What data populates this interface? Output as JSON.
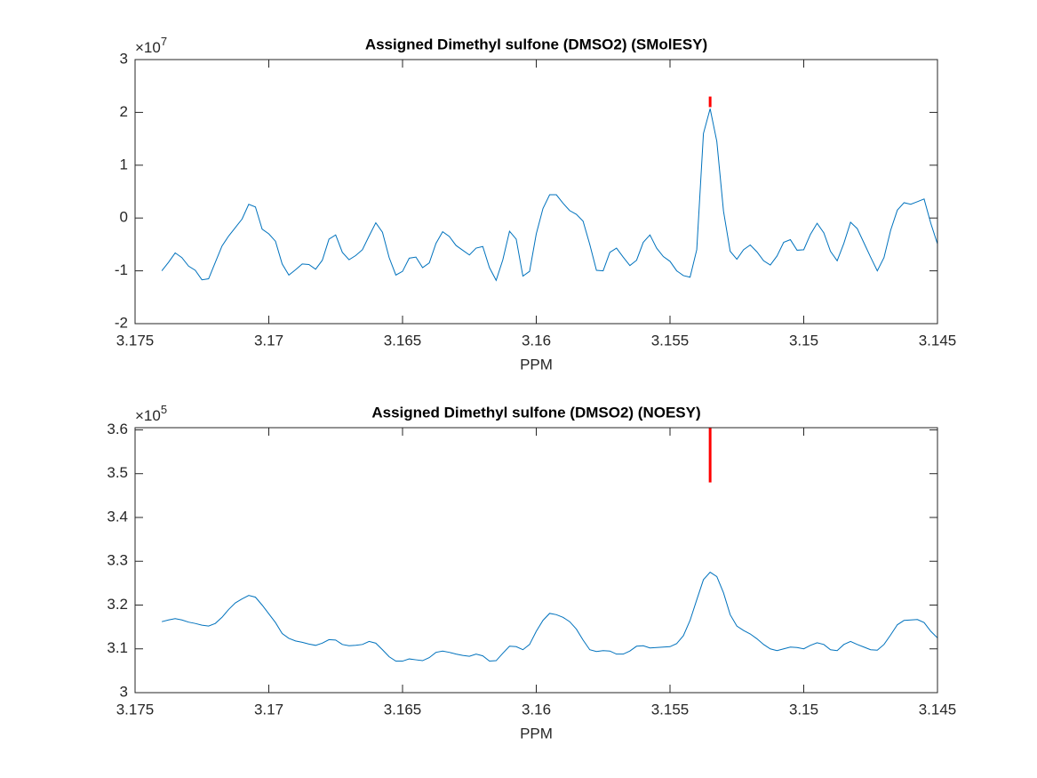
{
  "chart_data": [
    {
      "type": "line",
      "title": "Assigned Dimethyl sulfone (DMSO2) (SMolESY)",
      "xlabel": "PPM",
      "y_multiplier": {
        "base": "×10",
        "exponent": "7"
      },
      "xlim": [
        3.175,
        3.145
      ],
      "xticks": [
        3.175,
        3.17,
        3.165,
        3.16,
        3.155,
        3.15,
        3.145
      ],
      "ylim": [
        -2,
        3
      ],
      "yticks": [
        -2,
        -1,
        0,
        1,
        2,
        3
      ],
      "x": [
        3.174,
        3.17375,
        3.1735,
        3.17325,
        3.173,
        3.17275,
        3.1725,
        3.17225,
        3.172,
        3.17175,
        3.1715,
        3.17125,
        3.171,
        3.17075,
        3.1705,
        3.17025,
        3.17,
        3.16975,
        3.1695,
        3.16925,
        3.169,
        3.16875,
        3.1685,
        3.16825,
        3.168,
        3.16775,
        3.1675,
        3.16725,
        3.167,
        3.16675,
        3.1665,
        3.16625,
        3.166,
        3.16575,
        3.1655,
        3.16525,
        3.165,
        3.16475,
        3.1645,
        3.16425,
        3.164,
        3.16375,
        3.1635,
        3.16325,
        3.163,
        3.16275,
        3.1625,
        3.16225,
        3.162,
        3.16175,
        3.1615,
        3.16125,
        3.161,
        3.16075,
        3.1605,
        3.16025,
        3.16,
        3.15975,
        3.1595,
        3.15925,
        3.159,
        3.15875,
        3.1585,
        3.15825,
        3.158,
        3.15775,
        3.1575,
        3.15725,
        3.157,
        3.15675,
        3.1565,
        3.15625,
        3.156,
        3.15575,
        3.1555,
        3.15525,
        3.155,
        3.15475,
        3.1545,
        3.15425,
        3.154,
        3.15375,
        3.1535,
        3.15325,
        3.153,
        3.15275,
        3.1525,
        3.15225,
        3.152,
        3.15175,
        3.1515,
        3.15125,
        3.151,
        3.15075,
        3.1505,
        3.15025,
        3.15,
        3.14975,
        3.1495,
        3.14925,
        3.149,
        3.14875,
        3.1485,
        3.14825,
        3.148,
        3.14775,
        3.1475,
        3.14725,
        3.147,
        3.14675,
        3.1465,
        3.14625,
        3.146,
        3.14575,
        3.1455,
        3.14525,
        3.145
      ],
      "series": [
        {
          "color": "#0072bd",
          "values": [
            -1.0,
            -0.84,
            -0.66,
            -0.75,
            -0.91,
            -0.99,
            -1.17,
            -1.15,
            -0.84,
            -0.53,
            -0.34,
            -0.18,
            -0.02,
            0.26,
            0.21,
            -0.21,
            -0.3,
            -0.44,
            -0.87,
            -1.08,
            -0.98,
            -0.87,
            -0.88,
            -0.97,
            -0.8,
            -0.4,
            -0.32,
            -0.65,
            -0.79,
            -0.71,
            -0.6,
            -0.34,
            -0.09,
            -0.27,
            -0.75,
            -1.08,
            -1.01,
            -0.76,
            -0.74,
            -0.94,
            -0.85,
            -0.48,
            -0.26,
            -0.35,
            -0.52,
            -0.61,
            -0.7,
            -0.57,
            -0.54,
            -0.94,
            -1.18,
            -0.79,
            -0.25,
            -0.4,
            -1.1,
            -1.01,
            -0.3,
            0.18,
            0.44,
            0.44,
            0.28,
            0.14,
            0.07,
            -0.06,
            -0.5,
            -0.99,
            -1.0,
            -0.65,
            -0.57,
            -0.74,
            -0.9,
            -0.8,
            -0.46,
            -0.32,
            -0.57,
            -0.73,
            -0.82,
            -1.0,
            -1.09,
            -1.12,
            -0.6,
            1.6,
            2.07,
            1.45,
            0.13,
            -0.63,
            -0.78,
            -0.6,
            -0.51,
            -0.64,
            -0.81,
            -0.89,
            -0.72,
            -0.46,
            -0.41,
            -0.61,
            -0.6,
            -0.31,
            -0.1,
            -0.28,
            -0.63,
            -0.81,
            -0.48,
            -0.08,
            -0.2,
            -0.47,
            -0.74,
            -1.0,
            -0.75,
            -0.23,
            0.15,
            0.29,
            0.26,
            0.31,
            0.36,
            -0.1,
            -0.49
          ]
        },
        {
          "color": "#ff0000",
          "x": [
            3.1535,
            3.1535
          ],
          "values": [
            2.1,
            2.3
          ]
        }
      ]
    },
    {
      "type": "line",
      "title": "Assigned Dimethyl sulfone (DMSO2) (NOESY)",
      "xlabel": "PPM",
      "y_multiplier": {
        "base": "×10",
        "exponent": "5"
      },
      "xlim": [
        3.175,
        3.145
      ],
      "xticks": [
        3.175,
        3.17,
        3.165,
        3.16,
        3.155,
        3.15,
        3.145
      ],
      "ylim": [
        3,
        3.605
      ],
      "yticks": [
        3,
        3.1,
        3.2,
        3.3,
        3.4,
        3.5,
        3.6
      ],
      "x": [
        3.174,
        3.17375,
        3.1735,
        3.17325,
        3.173,
        3.17275,
        3.1725,
        3.17225,
        3.172,
        3.17175,
        3.1715,
        3.17125,
        3.171,
        3.17075,
        3.1705,
        3.17025,
        3.17,
        3.16975,
        3.1695,
        3.16925,
        3.169,
        3.16875,
        3.1685,
        3.16825,
        3.168,
        3.16775,
        3.1675,
        3.16725,
        3.167,
        3.16675,
        3.1665,
        3.16625,
        3.166,
        3.16575,
        3.1655,
        3.16525,
        3.165,
        3.16475,
        3.1645,
        3.16425,
        3.164,
        3.16375,
        3.1635,
        3.16325,
        3.163,
        3.16275,
        3.1625,
        3.16225,
        3.162,
        3.16175,
        3.1615,
        3.16125,
        3.161,
        3.16075,
        3.1605,
        3.16025,
        3.16,
        3.15975,
        3.1595,
        3.15925,
        3.159,
        3.15875,
        3.1585,
        3.15825,
        3.158,
        3.15775,
        3.1575,
        3.15725,
        3.157,
        3.15675,
        3.1565,
        3.15625,
        3.156,
        3.15575,
        3.1555,
        3.15525,
        3.155,
        3.15475,
        3.1545,
        3.15425,
        3.154,
        3.15375,
        3.1535,
        3.15325,
        3.153,
        3.15275,
        3.1525,
        3.15225,
        3.152,
        3.15175,
        3.1515,
        3.15125,
        3.151,
        3.15075,
        3.1505,
        3.15025,
        3.15,
        3.14975,
        3.1495,
        3.14925,
        3.149,
        3.14875,
        3.1485,
        3.14825,
        3.148,
        3.14775,
        3.1475,
        3.14725,
        3.147,
        3.14675,
        3.1465,
        3.14625,
        3.146,
        3.14575,
        3.1455,
        3.14525,
        3.145
      ],
      "series": [
        {
          "color": "#0072bd",
          "values": [
            3.162,
            3.166,
            3.169,
            3.166,
            3.161,
            3.158,
            3.154,
            3.152,
            3.158,
            3.172,
            3.19,
            3.205,
            3.214,
            3.222,
            3.218,
            3.2,
            3.18,
            3.16,
            3.135,
            3.124,
            3.118,
            3.115,
            3.111,
            3.108,
            3.113,
            3.121,
            3.12,
            3.11,
            3.107,
            3.108,
            3.11,
            3.117,
            3.113,
            3.098,
            3.082,
            3.072,
            3.072,
            3.077,
            3.075,
            3.073,
            3.08,
            3.092,
            3.095,
            3.092,
            3.088,
            3.085,
            3.083,
            3.088,
            3.084,
            3.072,
            3.073,
            3.09,
            3.106,
            3.105,
            3.098,
            3.11,
            3.14,
            3.165,
            3.181,
            3.178,
            3.172,
            3.162,
            3.145,
            3.12,
            3.098,
            3.094,
            3.096,
            3.095,
            3.088,
            3.088,
            3.095,
            3.106,
            3.107,
            3.102,
            3.103,
            3.104,
            3.105,
            3.112,
            3.13,
            3.165,
            3.212,
            3.258,
            3.275,
            3.265,
            3.228,
            3.178,
            3.152,
            3.142,
            3.134,
            3.123,
            3.11,
            3.1,
            3.096,
            3.1,
            3.104,
            3.103,
            3.1,
            3.108,
            3.114,
            3.11,
            3.098,
            3.096,
            3.11,
            3.117,
            3.11,
            3.104,
            3.098,
            3.097,
            3.11,
            3.132,
            3.155,
            3.165,
            3.166,
            3.167,
            3.16,
            3.14,
            3.125
          ]
        },
        {
          "color": "#ff0000",
          "x": [
            3.1535,
            3.1535
          ],
          "values": [
            3.48,
            3.605
          ]
        }
      ]
    }
  ]
}
